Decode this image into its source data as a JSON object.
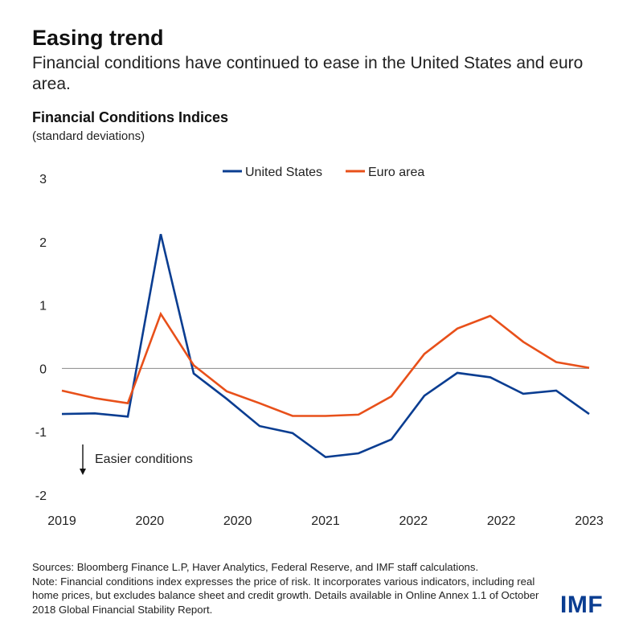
{
  "header": {
    "title": "Easing trend",
    "subtitle": "Financial conditions have continued to ease in the United States and euro area."
  },
  "chart_data": {
    "type": "line",
    "title": "Financial Conditions Indices",
    "unit": "(standard deviations)",
    "xlabel": "",
    "ylabel": "",
    "ylim": [
      -2,
      3
    ],
    "yticks": [
      3,
      2,
      1,
      0,
      -1,
      -2
    ],
    "x_tick_labels": [
      "2019",
      "2020",
      "2020",
      "2021",
      "2022",
      "2022",
      "2023"
    ],
    "x_points": 17,
    "grid": false,
    "zero_line": true,
    "legend_position": "top",
    "series": [
      {
        "name": "United States",
        "color": "#0a3d91",
        "values": [
          -0.72,
          -0.71,
          -0.76,
          2.12,
          -0.08,
          -0.48,
          -0.91,
          -1.02,
          -1.4,
          -1.34,
          -1.12,
          -0.43,
          -0.07,
          -0.14,
          -0.4,
          -0.35,
          -0.72
        ]
      },
      {
        "name": "Euro area",
        "color": "#e8501a",
        "values": [
          -0.35,
          -0.47,
          -0.55,
          0.86,
          0.05,
          -0.36,
          -0.55,
          -0.75,
          -0.75,
          -0.73,
          -0.44,
          0.23,
          0.63,
          0.83,
          0.42,
          0.1,
          0.01
        ]
      }
    ],
    "annotation": "Easier conditions"
  },
  "footer": {
    "sources": "Sources: Bloomberg Finance L.P, Haver Analytics, Federal Reserve, and IMF staff calculations.",
    "note": "Note: Financial conditions index expresses the price of risk. It incorporates various indicators, including real home prices, but excludes balance sheet and credit growth. Details available in Online Annex 1.1 of October 2018 Global Financial Stability Report."
  },
  "logo": "IMF"
}
